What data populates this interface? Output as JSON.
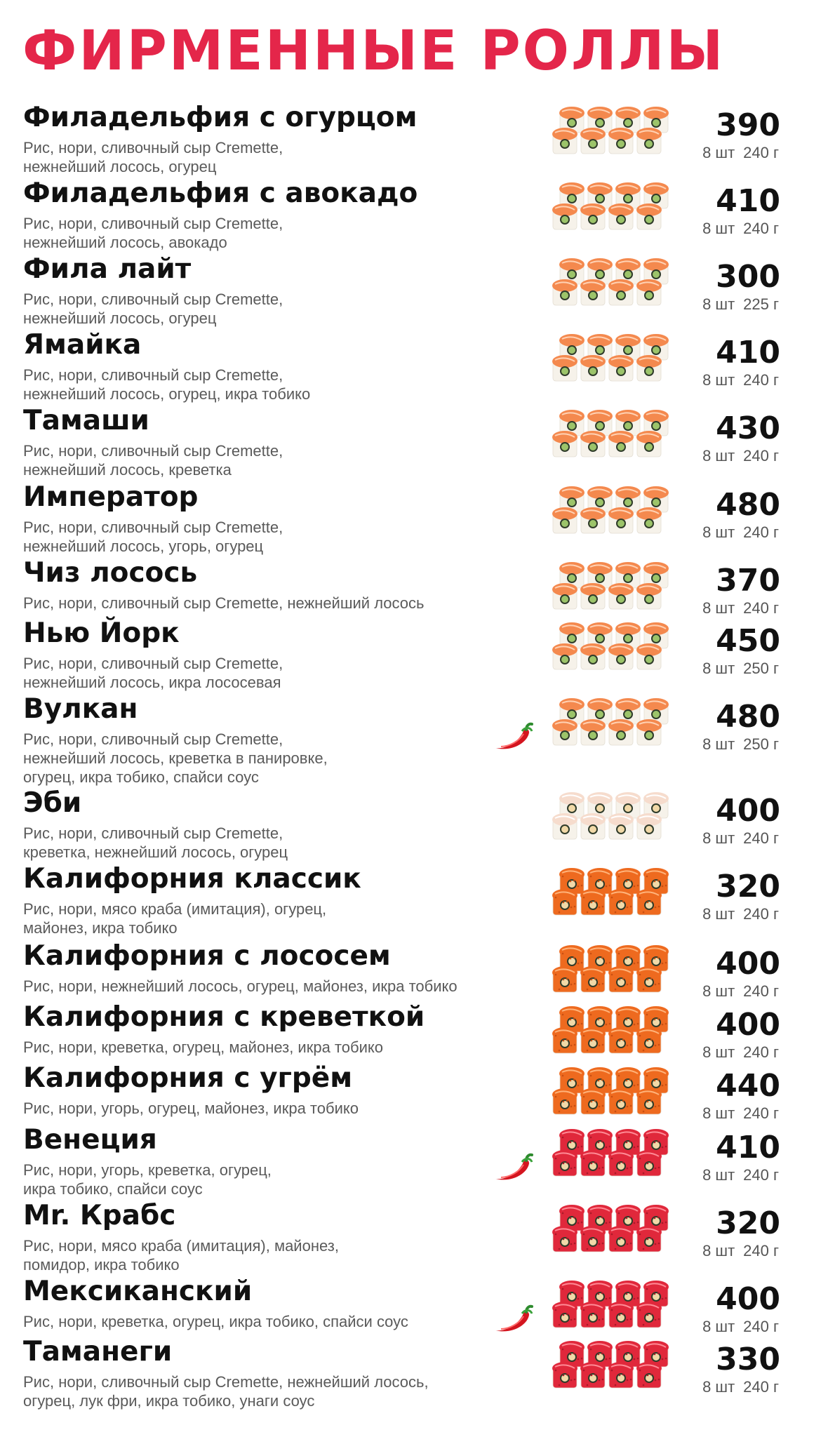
{
  "title": "ФИРМЕННЫЕ РОЛЛЫ",
  "colors": {
    "accent": "#e4264a",
    "salmon": "#f4894e",
    "tobiko_orange": "#ee6a1f",
    "tobiko_red": "#e0283b",
    "rice": "#f6f2ea"
  },
  "items": [
    {
      "name": "Филадельфия с огурцом",
      "desc": "Рис, нори,  сливочный сыр Cremette,\nнежнейший лосось, огурец",
      "price": "390",
      "qty": "8 шт",
      "weight": "240 г",
      "spicy": false,
      "style": "salmon"
    },
    {
      "name": "Филадельфия с авокадо",
      "desc": "Рис, нори, сливочный сыр Cremette,\nнежнейший лосось, авокадо",
      "price": "410",
      "qty": "8 шт",
      "weight": "240 г",
      "spicy": false,
      "style": "salmon"
    },
    {
      "name": "Фила лайт",
      "desc": "Рис, нори, сливочный сыр Cremette,\nнежнейший лосось, огурец",
      "price": "300",
      "qty": "8 шт",
      "weight": "225 г",
      "spicy": false,
      "style": "salmon"
    },
    {
      "name": "Ямайка",
      "desc": "Рис, нори, сливочный сыр Cremette,\nнежнейший лосось, огурец, икра тобико",
      "price": "410",
      "qty": "8 шт",
      "weight": "240 г",
      "spicy": false,
      "style": "salmon"
    },
    {
      "name": "Тамаши",
      "desc": "Рис, нори, сливочный сыр Cremette,\nнежнейший лосось, креветка",
      "price": "430",
      "qty": "8 шт",
      "weight": "240 г",
      "spicy": false,
      "style": "salmon"
    },
    {
      "name": "Император",
      "desc": "Рис, нори, сливочный сыр Cremette,\nнежнейший лосось, угорь, огурец",
      "price": "480",
      "qty": "8 шт",
      "weight": "240 г",
      "spicy": false,
      "style": "salmon"
    },
    {
      "name": "Чиз лосось",
      "desc": "Рис, нори, сливочный сыр Cremette, нежнейший лосось",
      "price": "370",
      "qty": "8 шт",
      "weight": "240 г",
      "spicy": false,
      "style": "salmon"
    },
    {
      "name": "Нью Йорк",
      "desc": "Рис, нори, сливочный сыр Cremette,\nнежнейший лосось, икра лососевая",
      "price": "450",
      "qty": "8 шт",
      "weight": "250 г",
      "spicy": false,
      "style": "salmon"
    },
    {
      "name": "Вулкан",
      "desc": "Рис, нори, сливочный сыр Cremette,\nнежнейший лосось, креветка в панировке,\nогурец, икра тобико, спайси соус",
      "price": "480",
      "qty": "8 шт",
      "weight": "250 г",
      "spicy": true,
      "style": "salmon"
    },
    {
      "name": "Эби",
      "desc": "Рис, нори, сливочный сыр Cremette,\nкреветка, нежнейший лосось, огурец",
      "price": "400",
      "qty": "8 шт",
      "weight": "240 г",
      "spicy": false,
      "style": "pale"
    },
    {
      "name": "Калифорния классик",
      "desc": "Рис, нори, мясо краба (имитация), огурец,\nмайонез, икра тобико",
      "price": "320",
      "qty": "8 шт",
      "weight": "240 г",
      "spicy": false,
      "style": "tobiko_orange"
    },
    {
      "name": "Калифорния с лососем",
      "desc": "Рис, нори, нежнейший лосось, огурец, майонез, икра тобико",
      "price": "400",
      "qty": "8 шт",
      "weight": "240 г",
      "spicy": false,
      "style": "tobiko_orange"
    },
    {
      "name": "Калифорния с креветкой",
      "desc": "Рис, нори, креветка, огурец, майонез, икра тобико",
      "price": "400",
      "qty": "8 шт",
      "weight": "240 г",
      "spicy": false,
      "style": "tobiko_orange"
    },
    {
      "name": "Калифорния с угрём",
      "desc": "Рис, нори, угорь, огурец, майонез, икра тобико",
      "price": "440",
      "qty": "8 шт",
      "weight": "240 г",
      "spicy": false,
      "style": "tobiko_orange"
    },
    {
      "name": "Венеция",
      "desc": "Рис, нори, угорь, креветка, огурец,\nикра тобико, спайси соус",
      "price": "410",
      "qty": "8 шт",
      "weight": "240 г",
      "spicy": true,
      "style": "tobiko_red"
    },
    {
      "name": "Mr. Крабс",
      "desc": "Рис, нори, мясо краба (имитация), майонез,\nпомидор, икра тобико",
      "price": "320",
      "qty": "8 шт",
      "weight": "240 г",
      "spicy": false,
      "style": "tobiko_red"
    },
    {
      "name": "Мексиканский",
      "desc": "Рис, нори, креветка, огурец, икра тобико, спайси соус",
      "price": "400",
      "qty": "8 шт",
      "weight": "240 г",
      "spicy": true,
      "style": "tobiko_red"
    },
    {
      "name": "Таманеги",
      "desc": "Рис, нори, сливочный сыр Cremette, нежнейший лосось,\nогурец, лук фри, икра тобико, унаги соус",
      "price": "330",
      "qty": "8 шт",
      "weight": "240 г",
      "spicy": false,
      "style": "tobiko_red"
    }
  ]
}
